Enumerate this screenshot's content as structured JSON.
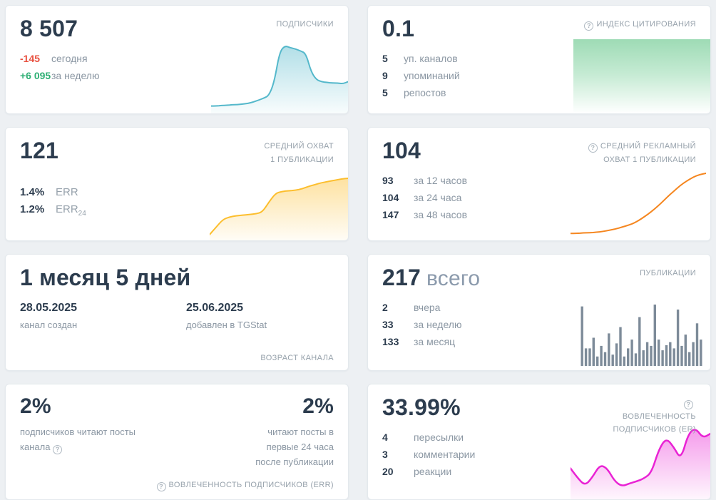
{
  "icons": {
    "help_glyph": "?"
  },
  "colors": {
    "negative": "#e8503f",
    "positive": "#2eaf74",
    "teal": "#54b8cb",
    "yellow": "#fcbe2d",
    "orange": "#f5861f",
    "bar_gray": "#7d8b99",
    "magenta": "#e923d4",
    "citation_green": "#9edbb5"
  },
  "cards": {
    "subscribers": {
      "value": "8 507",
      "title": "ПОДПИСЧИКИ",
      "today_value": "-145",
      "today_label": "сегодня",
      "week_value": "+6 095",
      "week_label": "за неделю"
    },
    "citation_index": {
      "value": "0.1",
      "title": "ИНДЕКС ЦИТИРОВАНИЯ",
      "rows": [
        {
          "value": "5",
          "label": "уп. каналов"
        },
        {
          "value": "9",
          "label": "упоминаний"
        },
        {
          "value": "5",
          "label": "репостов"
        }
      ]
    },
    "avg_reach": {
      "value": "121",
      "title": "СРЕДНИЙ ОХВАТ 1 ПУБЛИКАЦИИ",
      "err_value": "1.4%",
      "err_label": "ERR",
      "err24_value": "1.2%",
      "err24_label": "ERR",
      "err24_sub": "24"
    },
    "avg_ad_reach": {
      "value": "104",
      "title": "СРЕДНИЙ РЕКЛАМНЫЙ ОХВАТ 1 ПУБЛИКАЦИИ",
      "rows": [
        {
          "value": "93",
          "label": "за 12 часов"
        },
        {
          "value": "104",
          "label": "за 24 часа"
        },
        {
          "value": "147",
          "label": "за 48 часов"
        }
      ]
    },
    "channel_age": {
      "value": "1 месяц 5 дней",
      "created_date": "28.05.2025",
      "created_label": "канал создан",
      "added_date": "25.06.2025",
      "added_label": "добавлен в TGStat",
      "footer": "ВОЗРАСТ КАНАЛА"
    },
    "publications": {
      "value": "217",
      "value_suffix": "всего",
      "title": "ПУБЛИКАЦИИ",
      "rows": [
        {
          "value": "2",
          "label": "вчера"
        },
        {
          "value": "33",
          "label": "за неделю"
        },
        {
          "value": "133",
          "label": "за месяц"
        }
      ]
    },
    "err_engagement": {
      "left_value": "2%",
      "left_label": "подписчиков читают посты канала",
      "right_value": "2%",
      "right_label": "читают посты в первые 24 часа после публикации",
      "footer": "ВОВЛЕЧЕННОСТЬ ПОДПИСЧИКОВ (ERR)"
    },
    "er_engagement": {
      "value": "33.99%",
      "title": "ВОВЛЕЧЕННОСТЬ ПОДПИСЧИКОВ (ER)",
      "rows": [
        {
          "value": "4",
          "label": "пересылки"
        },
        {
          "value": "3",
          "label": "комментарии"
        },
        {
          "value": "20",
          "label": "реакции"
        }
      ]
    }
  },
  "chart_data": {
    "subscribers_sparkline": {
      "type": "area",
      "color": "#54b8cb",
      "stroke": 2,
      "values": [
        8,
        8,
        9,
        9,
        10,
        10,
        11,
        12,
        14,
        17,
        20,
        24,
        45,
        90,
        100,
        97,
        95,
        92,
        88,
        60,
        48,
        45,
        44,
        43,
        43,
        42,
        45
      ]
    },
    "avg_reach_sparkline": {
      "type": "area",
      "color": "#fcbe2d",
      "stroke": 2,
      "values": [
        6,
        18,
        30,
        34,
        36,
        37,
        38,
        39,
        42,
        58,
        72,
        75,
        76,
        77,
        79,
        83,
        86,
        89,
        91,
        93,
        95,
        96
      ]
    },
    "ad_reach_sparkline": {
      "type": "line",
      "color": "#f5861f",
      "stroke": 2,
      "values": [
        3,
        3,
        4,
        4,
        5,
        6,
        8,
        10,
        13,
        16,
        20,
        26,
        33,
        41,
        50,
        60,
        69,
        78,
        85,
        91,
        95,
        97
      ]
    },
    "publications_bars": {
      "type": "bars",
      "color": "#7d8b99",
      "values": [
        95,
        28,
        28,
        45,
        15,
        32,
        22,
        52,
        18,
        36,
        62,
        15,
        28,
        42,
        20,
        78,
        25,
        38,
        32,
        98,
        42,
        25,
        33,
        38,
        28,
        90,
        32,
        50,
        22,
        38,
        68,
        42
      ]
    },
    "er_sparkline": {
      "type": "area",
      "color": "#e923d4",
      "stroke": 2.5,
      "values": [
        40,
        26,
        16,
        28,
        45,
        40,
        22,
        15,
        19,
        22,
        26,
        34,
        66,
        82,
        70,
        52,
        88,
        96,
        82,
        88
      ]
    }
  }
}
